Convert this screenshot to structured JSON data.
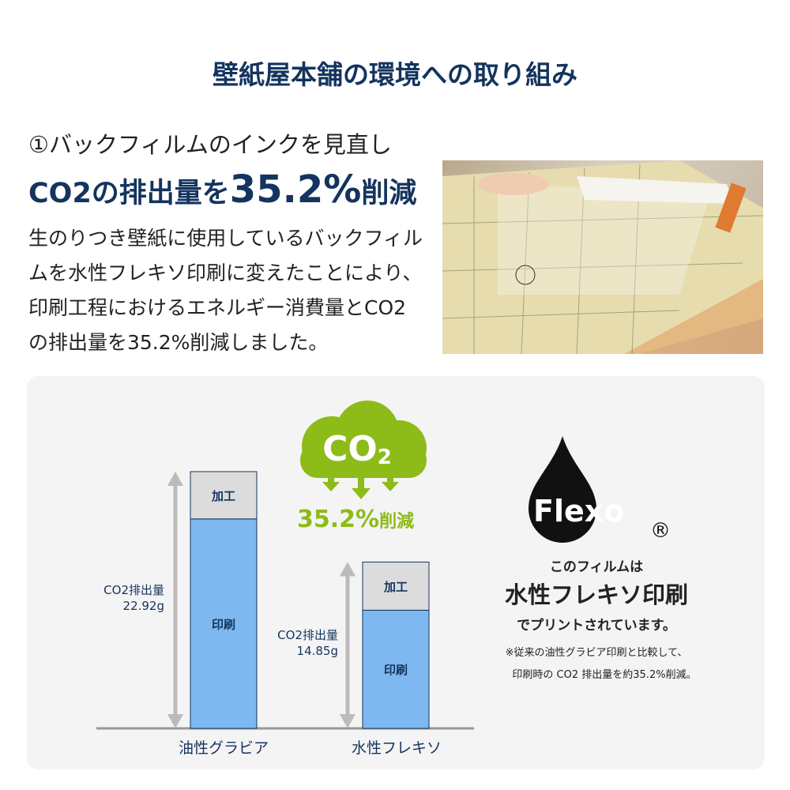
{
  "header": {
    "title": "壁紙屋本舗の環境への取り組み"
  },
  "section": {
    "subtitle": "①バックフィルムのインクを見直し",
    "headline_prefix": "CO2の排出量を",
    "headline_value": "35.2%",
    "headline_suffix": "削減",
    "body": "生のりつき壁紙に使用しているバックフィルムを水性フレキソ印刷に変えたことにより、印刷工程におけるエネルギー消費量とCO2の排出量を35.2%削減しました。"
  },
  "cloud": {
    "text": "CO",
    "sub": "2",
    "reduction": "35.2%",
    "reduction_suffix": "削減"
  },
  "flexo": {
    "logo": "Flexo",
    "registered": "®",
    "line1": "このフィルムは",
    "line2": "水性フレキソ印刷",
    "line3": "でプリントされています。",
    "note1": "※従来の油性グラビア印刷と比較して、",
    "note2": "印刷時の CO2 排出量を約35.2%削減。"
  },
  "colors": {
    "navy": "#14345e",
    "green": "#8dbb18",
    "print": "#7db8f0",
    "processing": "#dcdcdc"
  },
  "chart_data": {
    "type": "bar",
    "stacked": true,
    "categories": [
      "油性グラビア",
      "水性フレキソ"
    ],
    "series": [
      {
        "name": "印刷",
        "values": [
          18.7,
          10.55
        ]
      },
      {
        "name": "加工",
        "values": [
          4.22,
          4.3
        ]
      }
    ],
    "totals_label": "CO2排出量",
    "totals": [
      "22.92g",
      "14.85g"
    ],
    "ylim": [
      0,
      22.92
    ]
  }
}
